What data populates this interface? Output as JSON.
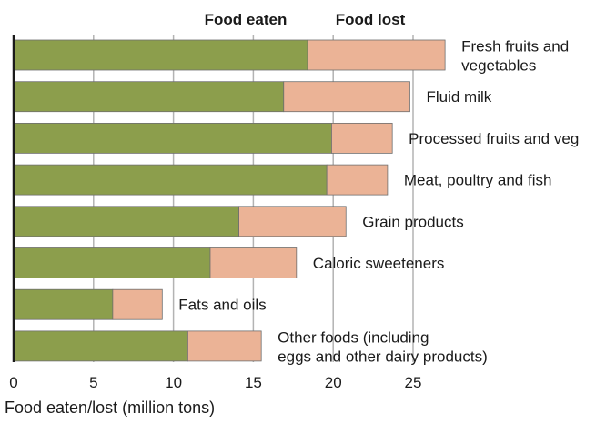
{
  "chart_data": {
    "type": "bar",
    "orientation": "horizontal",
    "stacked": true,
    "title": "",
    "xlabel": "Food eaten/lost (million tons)",
    "ylabel": "",
    "xlim": [
      0,
      27
    ],
    "xticks": [
      0,
      5,
      10,
      15,
      20,
      25
    ],
    "grid": true,
    "legend_placement": "top",
    "categories": [
      [
        "Fresh fruits and",
        "vegetables"
      ],
      [
        "Fluid milk"
      ],
      [
        "Processed fruits and veg"
      ],
      [
        "Meat, poultry and fish"
      ],
      [
        "Grain products"
      ],
      [
        "Caloric sweeteners"
      ],
      [
        "Fats and oils"
      ],
      [
        "Other foods (including",
        "eggs and other dairy products)"
      ]
    ],
    "series": [
      {
        "name": "Food eaten",
        "color": "#8c9e4c",
        "values": [
          18.4,
          16.9,
          19.9,
          19.6,
          14.1,
          12.3,
          6.2,
          10.9
        ]
      },
      {
        "name": "Food lost",
        "color": "#ebb396",
        "values": [
          8.6,
          7.9,
          3.8,
          3.8,
          6.7,
          5.4,
          3.1,
          4.6
        ]
      }
    ]
  }
}
